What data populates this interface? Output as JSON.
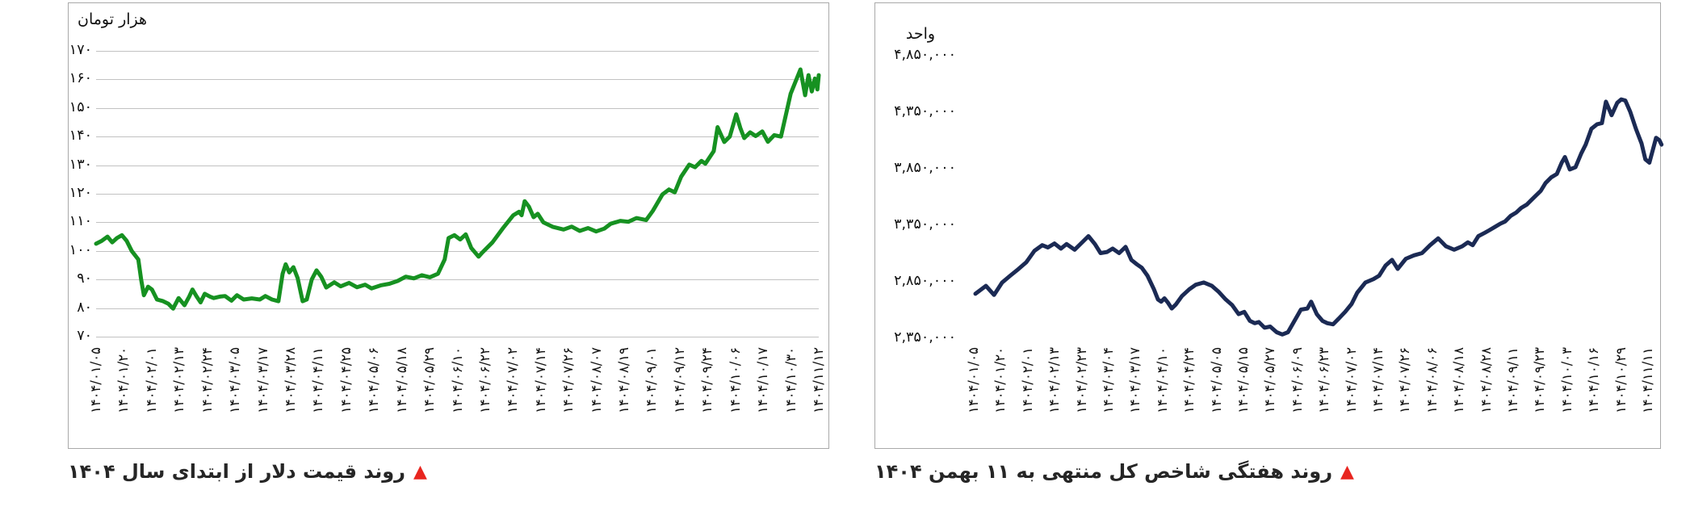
{
  "page": {
    "background": "#ffffff"
  },
  "chart_data": [
    {
      "type": "line",
      "title": "روند قیمت دلار از ابتدای سال ۱۴۰۴",
      "unit_label": "هزار تومان",
      "line_color": "#169121",
      "grid_color": "#c2c2c2",
      "marker_color": "#e8251f",
      "grid": true,
      "ylim": [
        70,
        170
      ],
      "y_tick_values": [
        170,
        160,
        150,
        140,
        130,
        120,
        110,
        100,
        90,
        80,
        70
      ],
      "y_tick_labels": [
        "۱۷۰",
        "۱۶۰",
        "۱۵۰",
        "۱۴۰",
        "۱۳۰",
        "۱۲۰",
        "۱۱۰",
        "۱۰۰",
        "۹۰",
        "۸۰",
        "۷۰"
      ],
      "x_labels": [
        "۱۴۰۴/۰۱/۰۵",
        "۱۴۰۴/۰۱/۲۰",
        "۱۴۰۴/۰۲/۰۱",
        "۱۴۰۴/۰۲/۱۳",
        "۱۴۰۴/۰۲/۲۴",
        "۱۴۰۴/۰۳/۰۵",
        "۱۴۰۴/۰۳/۱۷",
        "۱۴۰۴/۰۳/۲۸",
        "۱۴۰۴/۰۴/۱۱",
        "۱۴۰۴/۰۴/۲۵",
        "۱۴۰۴/۰۵/۰۶",
        "۱۴۰۴/۰۵/۱۸",
        "۱۴۰۴/۰۵/۲۹",
        "۱۴۰۴/۰۶/۱۰",
        "۱۴۰۴/۰۶/۲۲",
        "۱۴۰۴/۰۷/۰۲",
        "۱۴۰۴/۰۷/۱۴",
        "۱۴۰۴/۰۷/۲۶",
        "۱۴۰۴/۰۸/۰۷",
        "۱۴۰۴/۰۸/۱۹",
        "۱۴۰۴/۰۹/۰۱",
        "۱۴۰۴/۰۹/۱۲",
        "۱۴۰۴/۰۹/۲۴",
        "۱۴۰۴/۱۰/۰۶",
        "۱۴۰۴/۱۰/۱۷",
        "۱۴۰۴/۱۰/۳۰",
        "۱۴۰۴/۱۱/۱۲"
      ],
      "points": [
        [
          0,
          102.5
        ],
        [
          0.2,
          103.5
        ],
        [
          0.41,
          105
        ],
        [
          0.58,
          103
        ],
        [
          0.75,
          104.5
        ],
        [
          0.93,
          105.5
        ],
        [
          1.1,
          103.5
        ],
        [
          1.28,
          100
        ],
        [
          1.52,
          97
        ],
        [
          1.62,
          90
        ],
        [
          1.72,
          84.5
        ],
        [
          1.87,
          87.5
        ],
        [
          2.01,
          86.5
        ],
        [
          2.19,
          83
        ],
        [
          2.39,
          82.5
        ],
        [
          2.6,
          81.5
        ],
        [
          2.77,
          79.8
        ],
        [
          2.97,
          83.5
        ],
        [
          3.18,
          81
        ],
        [
          3.35,
          84
        ],
        [
          3.47,
          86.5
        ],
        [
          3.62,
          84
        ],
        [
          3.76,
          82
        ],
        [
          3.91,
          85
        ],
        [
          4.1,
          84
        ],
        [
          4.23,
          83.5
        ],
        [
          4.45,
          84
        ],
        [
          4.64,
          84.2
        ],
        [
          4.87,
          82.6
        ],
        [
          5.07,
          84.5
        ],
        [
          5.31,
          83
        ],
        [
          5.6,
          83.4
        ],
        [
          5.89,
          83
        ],
        [
          6.09,
          84.2
        ],
        [
          6.33,
          83
        ],
        [
          6.56,
          82.4
        ],
        [
          6.71,
          92
        ],
        [
          6.82,
          95.3
        ],
        [
          6.95,
          92.5
        ],
        [
          7.1,
          94.3
        ],
        [
          7.25,
          90.5
        ],
        [
          7.43,
          82.4
        ],
        [
          7.58,
          83
        ],
        [
          7.76,
          90
        ],
        [
          7.93,
          93.2
        ],
        [
          8.1,
          91
        ],
        [
          8.28,
          87.2
        ],
        [
          8.57,
          89
        ],
        [
          8.8,
          87.6
        ],
        [
          9.1,
          88.8
        ],
        [
          9.39,
          87.3
        ],
        [
          9.68,
          88.2
        ],
        [
          9.91,
          86.9
        ],
        [
          10.26,
          88
        ],
        [
          10.55,
          88.5
        ],
        [
          10.85,
          89.5
        ],
        [
          11.14,
          91
        ],
        [
          11.43,
          90.4
        ],
        [
          11.72,
          91.5
        ],
        [
          12.01,
          90.8
        ],
        [
          12.3,
          92
        ],
        [
          12.54,
          97
        ],
        [
          12.68,
          104.5
        ],
        [
          12.89,
          105.5
        ],
        [
          13.1,
          104
        ],
        [
          13.3,
          105.8
        ],
        [
          13.5,
          101
        ],
        [
          13.76,
          98
        ],
        [
          13.9,
          99.5
        ],
        [
          14.26,
          103
        ],
        [
          14.64,
          108
        ],
        [
          15.01,
          112.5
        ],
        [
          15.22,
          113.7
        ],
        [
          15.31,
          112.5
        ],
        [
          15.42,
          117.4
        ],
        [
          15.57,
          115.5
        ],
        [
          15.74,
          111.8
        ],
        [
          15.89,
          113
        ],
        [
          16.09,
          110
        ],
        [
          16.44,
          108.4
        ],
        [
          16.82,
          107.5
        ],
        [
          17.11,
          108.5
        ],
        [
          17.4,
          107
        ],
        [
          17.7,
          108
        ],
        [
          17.99,
          106.8
        ],
        [
          18.28,
          107.8
        ],
        [
          18.51,
          109.5
        ],
        [
          18.86,
          110.5
        ],
        [
          19.15,
          110.2
        ],
        [
          19.44,
          111.5
        ],
        [
          19.79,
          110.8
        ],
        [
          20.03,
          114
        ],
        [
          20.38,
          119.8
        ],
        [
          20.61,
          121.5
        ],
        [
          20.82,
          120.5
        ],
        [
          21.05,
          126
        ],
        [
          21.34,
          130.2
        ],
        [
          21.55,
          129.3
        ],
        [
          21.78,
          131.5
        ],
        [
          21.92,
          130.5
        ],
        [
          22.22,
          134.9
        ],
        [
          22.36,
          143.3
        ],
        [
          22.6,
          138.1
        ],
        [
          22.8,
          140
        ],
        [
          23.03,
          147.8
        ],
        [
          23.18,
          143
        ],
        [
          23.32,
          139.5
        ],
        [
          23.53,
          141.5
        ],
        [
          23.73,
          140.2
        ],
        [
          23.97,
          141.8
        ],
        [
          24.17,
          138.2
        ],
        [
          24.4,
          140.5
        ],
        [
          24.64,
          140
        ],
        [
          24.99,
          155
        ],
        [
          25.34,
          163.5
        ],
        [
          25.51,
          154.5
        ],
        [
          25.63,
          161.5
        ],
        [
          25.75,
          155.8
        ],
        [
          25.86,
          160.3
        ],
        [
          25.95,
          156.5
        ],
        [
          26,
          161.5
        ]
      ]
    },
    {
      "type": "line",
      "title": "روند هفتگی شاخص کل منتهی به ۱۱ بهمن ۱۴۰۴",
      "unit_label": "واحد",
      "line_color": "#1b2a54",
      "grid_color": "#c2c2c2",
      "marker_color": "#e8251f",
      "grid": false,
      "ylim": [
        2350000,
        4850000
      ],
      "y_tick_values": [
        4850000,
        4350000,
        3850000,
        3350000,
        2850000,
        2350000
      ],
      "y_tick_labels": [
        "۴,۸۵۰,۰۰۰",
        "۴,۳۵۰,۰۰۰",
        "۳,۸۵۰,۰۰۰",
        "۳,۳۵۰,۰۰۰",
        "۲,۸۵۰,۰۰۰",
        "۲,۳۵۰,۰۰۰"
      ],
      "x_labels": [
        "۱۴۰۴/۰۱/۰۵",
        "۱۴۰۴/۰۱/۲۰",
        "۱۴۰۴/۰۲/۰۱",
        "۱۴۰۴/۰۲/۱۳",
        "۱۴۰۴/۰۲/۲۳",
        "۱۴۰۴/۰۳/۰۴",
        "۱۴۰۴/۰۳/۱۷",
        "۱۴۰۴/۰۴/۱۰",
        "۱۴۰۴/۰۴/۲۴",
        "۱۴۰۴/۰۵/۰۵",
        "۱۴۰۴/۰۵/۱۵",
        "۱۴۰۴/۰۵/۲۷",
        "۱۴۰۴/۰۶/۰۹",
        "۱۴۰۴/۰۶/۲۳",
        "۱۴۰۴/۰۷/۰۲",
        "۱۴۰۴/۰۷/۱۴",
        "۱۴۰۴/۰۷/۲۶",
        "۱۴۰۴/۰۸/۰۶",
        "۱۴۰۴/۰۸/۱۸",
        "۱۴۰۴/۰۸/۲۸",
        "۱۴۰۴/۰۹/۱۱",
        "۱۴۰۴/۰۹/۲۳",
        "۱۴۰۴/۱۰/۰۳",
        "۱۴۰۴/۱۰/۱۶",
        "۱۴۰۴/۱۰/۲۹",
        "۱۴۰۴/۱۱/۱۱"
      ],
      "points": [
        [
          0.06,
          2740000
        ],
        [
          0.45,
          2810000
        ],
        [
          0.75,
          2730000
        ],
        [
          1.05,
          2840000
        ],
        [
          1.35,
          2900000
        ],
        [
          1.65,
          2958000
        ],
        [
          1.95,
          3020000
        ],
        [
          2.25,
          3120000
        ],
        [
          2.54,
          3170000
        ],
        [
          2.75,
          3150000
        ],
        [
          2.99,
          3185000
        ],
        [
          3.23,
          3140000
        ],
        [
          3.44,
          3180000
        ],
        [
          3.74,
          3130000
        ],
        [
          4.04,
          3200000
        ],
        [
          4.25,
          3250000
        ],
        [
          4.49,
          3180000
        ],
        [
          4.7,
          3100000
        ],
        [
          4.94,
          3110000
        ],
        [
          5.15,
          3140000
        ],
        [
          5.39,
          3100000
        ],
        [
          5.63,
          3155000
        ],
        [
          5.84,
          3040000
        ],
        [
          6.05,
          3000000
        ],
        [
          6.23,
          2970000
        ],
        [
          6.44,
          2900000
        ],
        [
          6.68,
          2780000
        ],
        [
          6.83,
          2690000
        ],
        [
          6.95,
          2670000
        ],
        [
          7.07,
          2700000
        ],
        [
          7.19,
          2665000
        ],
        [
          7.34,
          2610000
        ],
        [
          7.49,
          2645000
        ],
        [
          7.72,
          2720000
        ],
        [
          7.99,
          2780000
        ],
        [
          8.23,
          2820000
        ],
        [
          8.53,
          2840000
        ],
        [
          8.83,
          2810000
        ],
        [
          9.07,
          2760000
        ],
        [
          9.34,
          2690000
        ],
        [
          9.58,
          2640000
        ],
        [
          9.82,
          2560000
        ],
        [
          10.03,
          2580000
        ],
        [
          10.24,
          2500000
        ],
        [
          10.42,
          2480000
        ],
        [
          10.57,
          2490000
        ],
        [
          10.78,
          2440000
        ],
        [
          10.99,
          2450000
        ],
        [
          11.23,
          2400000
        ],
        [
          11.44,
          2380000
        ],
        [
          11.65,
          2400000
        ],
        [
          11.89,
          2500000
        ],
        [
          12.13,
          2600000
        ],
        [
          12.37,
          2610000
        ],
        [
          12.51,
          2670000
        ],
        [
          12.72,
          2560000
        ],
        [
          12.93,
          2500000
        ],
        [
          13.11,
          2480000
        ],
        [
          13.32,
          2470000
        ],
        [
          13.53,
          2520000
        ],
        [
          13.77,
          2580000
        ],
        [
          14.01,
          2650000
        ],
        [
          14.22,
          2750000
        ],
        [
          14.52,
          2840000
        ],
        [
          14.82,
          2870000
        ],
        [
          15.03,
          2900000
        ],
        [
          15.27,
          2990000
        ],
        [
          15.51,
          3040000
        ],
        [
          15.72,
          2960000
        ],
        [
          16.02,
          3050000
        ],
        [
          16.32,
          3080000
        ],
        [
          16.62,
          3100000
        ],
        [
          16.92,
          3170000
        ],
        [
          17.22,
          3230000
        ],
        [
          17.51,
          3160000
        ],
        [
          17.81,
          3130000
        ],
        [
          18.11,
          3160000
        ],
        [
          18.32,
          3195000
        ],
        [
          18.5,
          3170000
        ],
        [
          18.71,
          3250000
        ],
        [
          18.95,
          3280000
        ],
        [
          19.1,
          3300000
        ],
        [
          19.31,
          3330000
        ],
        [
          19.52,
          3360000
        ],
        [
          19.7,
          3380000
        ],
        [
          19.91,
          3430000
        ],
        [
          20.12,
          3460000
        ],
        [
          20.3,
          3500000
        ],
        [
          20.51,
          3530000
        ],
        [
          20.72,
          3580000
        ],
        [
          21.02,
          3650000
        ],
        [
          21.2,
          3720000
        ],
        [
          21.41,
          3770000
        ],
        [
          21.62,
          3800000
        ],
        [
          21.8,
          3900000
        ],
        [
          21.92,
          3950000
        ],
        [
          22.1,
          3840000
        ],
        [
          22.31,
          3860000
        ],
        [
          22.52,
          3980000
        ],
        [
          22.69,
          4060000
        ],
        [
          22.9,
          4200000
        ],
        [
          23.11,
          4240000
        ],
        [
          23.29,
          4250000
        ],
        [
          23.44,
          4440000
        ],
        [
          23.65,
          4320000
        ],
        [
          23.86,
          4430000
        ],
        [
          24.01,
          4460000
        ],
        [
          24.16,
          4450000
        ],
        [
          24.34,
          4350000
        ],
        [
          24.55,
          4200000
        ],
        [
          24.76,
          4070000
        ],
        [
          24.9,
          3930000
        ],
        [
          25.05,
          3900000
        ],
        [
          25.3,
          4120000
        ],
        [
          25.42,
          4100000
        ],
        [
          25.5,
          4060000
        ]
      ]
    }
  ]
}
